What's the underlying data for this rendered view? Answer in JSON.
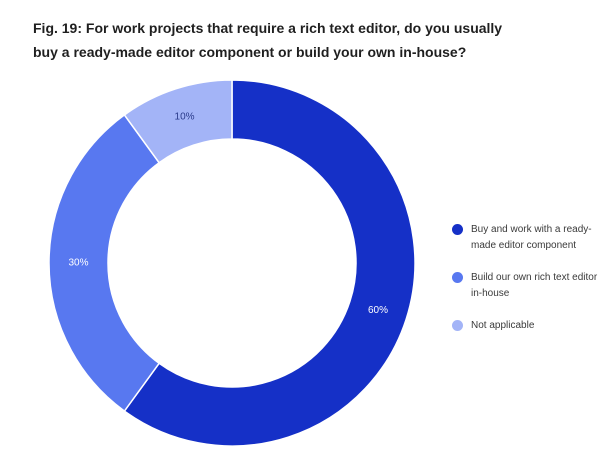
{
  "title_lines": [
    "Fig. 19: For work projects that require a rich text editor, do you usually",
    "buy a ready-made editor component or build your own in-house?"
  ],
  "chart_data": {
    "type": "pie",
    "donut": true,
    "title": "Fig. 19: For work projects that require a rich text editor, do you usually buy a ready-made editor component or build your own in-house?",
    "series": [
      {
        "name": "Buy and work with a ready-made editor component",
        "value": 60,
        "label": "60%",
        "color": "#1530c7"
      },
      {
        "name": "Build our own rich text editor in-house",
        "value": 30,
        "label": "30%",
        "color": "#5878f0"
      },
      {
        "name": "Not applicable",
        "value": 10,
        "label": "10%",
        "color": "#a3b4f7"
      }
    ],
    "start_angle_deg": 0,
    "direction": "clockwise",
    "legend_position": "right"
  }
}
